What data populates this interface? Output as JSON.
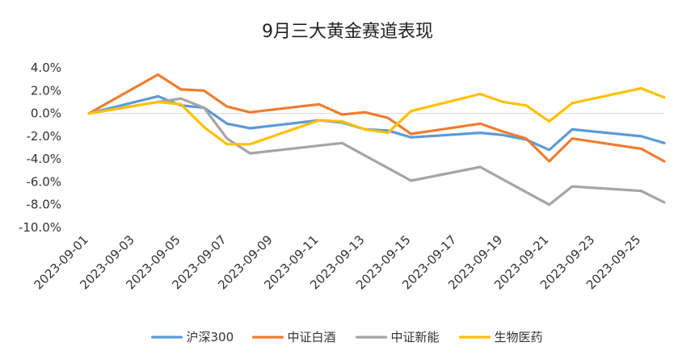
{
  "chart_data": {
    "type": "line",
    "title": "9月三大黄金赛道表现",
    "xlabel": "",
    "ylabel": "",
    "ylim": [
      -10,
      4
    ],
    "y_ticks": [
      4,
      2,
      0,
      -2,
      -4,
      -6,
      -8,
      -10
    ],
    "y_tick_labels": [
      "4.0%",
      "2.0%",
      "0.0%",
      "-2.0%",
      "-4.0%",
      "-6.0%",
      "-8.0%",
      "-10.0%"
    ],
    "x_tick_labels": [
      "2023-09-01",
      "2023-09-03",
      "2023-09-05",
      "2023-09-07",
      "2023-09-09",
      "2023-09-11",
      "2023-09-13",
      "2023-09-15",
      "2023-09-17",
      "2023-09-19",
      "2023-09-21",
      "2023-09-23",
      "2023-09-25"
    ],
    "x_range": [
      "2023-09-01",
      "2023-09-26"
    ],
    "grid": false,
    "legend_position": "bottom",
    "series": [
      {
        "name": "沪深300",
        "color": "#5B9BD5",
        "points": [
          [
            "2023-09-01",
            0.0
          ],
          [
            "2023-09-04",
            1.5
          ],
          [
            "2023-09-05",
            0.7
          ],
          [
            "2023-09-06",
            0.5
          ],
          [
            "2023-09-07",
            -0.9
          ],
          [
            "2023-09-08",
            -1.3
          ],
          [
            "2023-09-11",
            -0.6
          ],
          [
            "2023-09-12",
            -0.8
          ],
          [
            "2023-09-13",
            -1.4
          ],
          [
            "2023-09-14",
            -1.5
          ],
          [
            "2023-09-15",
            -2.1
          ],
          [
            "2023-09-18",
            -1.7
          ],
          [
            "2023-09-19",
            -1.9
          ],
          [
            "2023-09-20",
            -2.3
          ],
          [
            "2023-09-21",
            -3.2
          ],
          [
            "2023-09-22",
            -1.4
          ],
          [
            "2023-09-25",
            -2.0
          ],
          [
            "2023-09-26",
            -2.6
          ]
        ]
      },
      {
        "name": "中证白酒",
        "color": "#ED7D31",
        "points": [
          [
            "2023-09-01",
            0.0
          ],
          [
            "2023-09-04",
            3.4
          ],
          [
            "2023-09-05",
            2.1
          ],
          [
            "2023-09-06",
            2.0
          ],
          [
            "2023-09-07",
            0.6
          ],
          [
            "2023-09-08",
            0.1
          ],
          [
            "2023-09-11",
            0.8
          ],
          [
            "2023-09-12",
            -0.1
          ],
          [
            "2023-09-13",
            0.1
          ],
          [
            "2023-09-14",
            -0.4
          ],
          [
            "2023-09-15",
            -1.8
          ],
          [
            "2023-09-18",
            -0.9
          ],
          [
            "2023-09-19",
            -1.6
          ],
          [
            "2023-09-20",
            -2.2
          ],
          [
            "2023-09-21",
            -4.2
          ],
          [
            "2023-09-22",
            -2.2
          ],
          [
            "2023-09-25",
            -3.1
          ],
          [
            "2023-09-26",
            -4.2
          ]
        ]
      },
      {
        "name": "中证新能",
        "color": "#A5A5A5",
        "points": [
          [
            "2023-09-01",
            0.0
          ],
          [
            "2023-09-04",
            1.0
          ],
          [
            "2023-09-05",
            1.3
          ],
          [
            "2023-09-06",
            0.5
          ],
          [
            "2023-09-07",
            -2.2
          ],
          [
            "2023-09-08",
            -3.5
          ],
          [
            "2023-09-12",
            -2.6
          ],
          [
            "2023-09-15",
            -5.9
          ],
          [
            "2023-09-18",
            -4.7
          ],
          [
            "2023-09-20",
            -6.9
          ],
          [
            "2023-09-21",
            -8.0
          ],
          [
            "2023-09-22",
            -6.4
          ],
          [
            "2023-09-25",
            -6.8
          ],
          [
            "2023-09-26",
            -7.8
          ]
        ]
      },
      {
        "name": "生物医药",
        "color": "#FFC000",
        "points": [
          [
            "2023-09-01",
            0.0
          ],
          [
            "2023-09-04",
            1.0
          ],
          [
            "2023-09-05",
            0.8
          ],
          [
            "2023-09-06",
            -1.2
          ],
          [
            "2023-09-07",
            -2.7
          ],
          [
            "2023-09-08",
            -2.7
          ],
          [
            "2023-09-11",
            -0.6
          ],
          [
            "2023-09-12",
            -0.7
          ],
          [
            "2023-09-13",
            -1.4
          ],
          [
            "2023-09-14",
            -1.7
          ],
          [
            "2023-09-15",
            0.2
          ],
          [
            "2023-09-18",
            1.7
          ],
          [
            "2023-09-19",
            1.0
          ],
          [
            "2023-09-20",
            0.7
          ],
          [
            "2023-09-21",
            -0.7
          ],
          [
            "2023-09-22",
            0.9
          ],
          [
            "2023-09-25",
            2.2
          ],
          [
            "2023-09-26",
            1.4
          ]
        ]
      }
    ]
  }
}
